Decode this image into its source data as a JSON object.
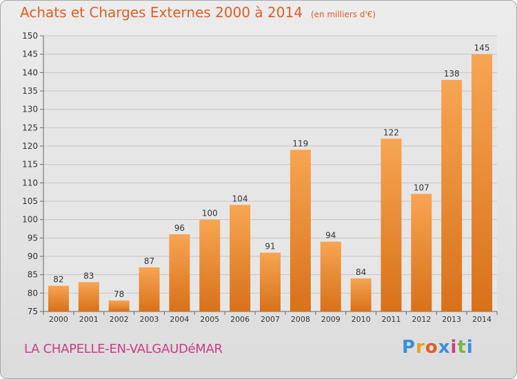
{
  "header": {
    "title": "Achats et Charges Externes 2000 à 2014",
    "unit": "(en milliers d'€)"
  },
  "footer": {
    "location": "LA CHAPELLE-EN-VALGAUDéMAR",
    "brand": "Proxiti",
    "brand_letters": [
      "P",
      "r",
      "o",
      "x",
      "i",
      "t",
      "i"
    ],
    "brand_colors": [
      "#3a8fd6",
      "#e8a020",
      "#e05d24",
      "#3a8fd6",
      "#cc3a8a",
      "#7ab648",
      "#3a8fd6"
    ]
  },
  "colors": {
    "bar_light": "#f7a552",
    "bar_dark": "#d8711a",
    "title": "#e05d24",
    "location": "#cc3a8a"
  },
  "chart_data": {
    "type": "bar",
    "title": "Achats et Charges Externes 2000 à 2014",
    "subtitle": "(en milliers d'€)",
    "categories": [
      "2000",
      "2001",
      "2002",
      "2003",
      "2004",
      "2005",
      "2006",
      "2007",
      "2008",
      "2009",
      "2010",
      "2011",
      "2012",
      "2013",
      "2014"
    ],
    "values": [
      82,
      83,
      78,
      87,
      96,
      100,
      104,
      91,
      119,
      94,
      84,
      122,
      107,
      138,
      145
    ],
    "ylim": [
      75,
      150
    ],
    "yticks": [
      75,
      80,
      85,
      90,
      95,
      100,
      105,
      110,
      115,
      120,
      125,
      130,
      135,
      140,
      145,
      150
    ],
    "grid": true,
    "data_labels": true
  }
}
